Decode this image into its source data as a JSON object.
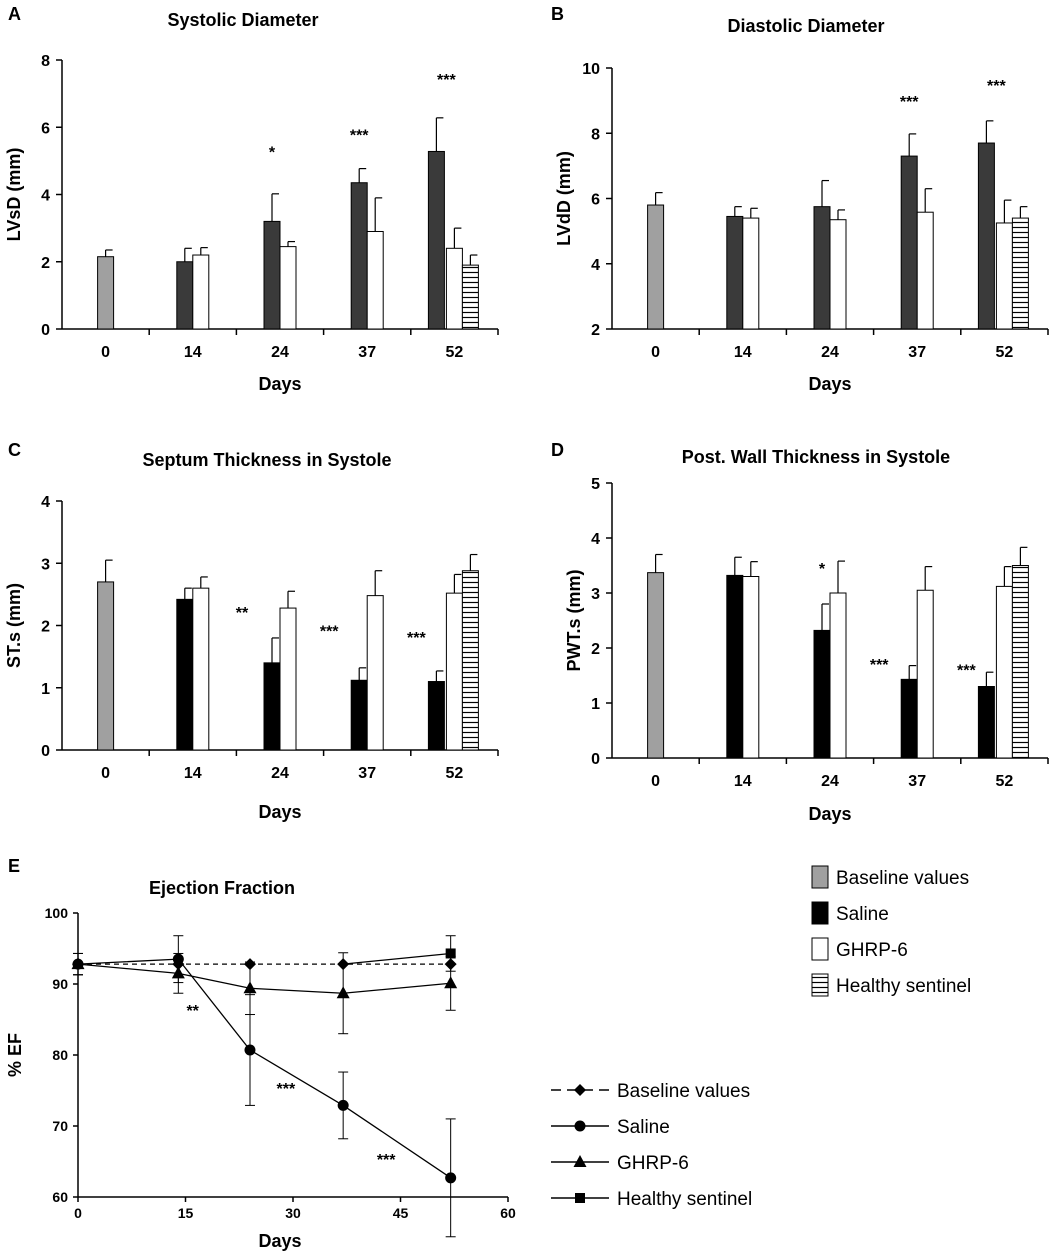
{
  "colors": {
    "baseline": "#a0a0a0",
    "saline_dark": "#3a3a3a",
    "saline_black": "#000000",
    "ghrp": "#ffffff",
    "sentinel": "#ffffff",
    "axis": "#000000"
  },
  "legend_bars": {
    "items": [
      {
        "label": "Baseline values",
        "style": "baseline"
      },
      {
        "label": "Saline",
        "style": "saline"
      },
      {
        "label": "GHRP-6",
        "style": "ghrp"
      },
      {
        "label": "Healthy sentinel",
        "style": "sentinel"
      }
    ]
  },
  "legend_lines": {
    "items": [
      {
        "label": "Baseline values",
        "marker": "diamond",
        "dash": true
      },
      {
        "label": "Saline",
        "marker": "circle",
        "dash": false
      },
      {
        "label": "GHRP-6",
        "marker": "triangle",
        "dash": false
      },
      {
        "label": "Healthy sentinel",
        "marker": "square",
        "dash": false
      }
    ]
  },
  "chart_data": [
    {
      "panel": "A",
      "type": "bar",
      "title": "Systolic Diameter",
      "xlabel": "Days",
      "ylabel": "LVsD (mm)",
      "ylim": [
        0,
        8
      ],
      "yticks": [
        0,
        2,
        4,
        6,
        8
      ],
      "categories": [
        "0",
        "14",
        "24",
        "37",
        "52"
      ],
      "saline_style": "dark",
      "series": [
        {
          "name": "Baseline values",
          "style": "baseline",
          "values": [
            2.15,
            null,
            null,
            null,
            null
          ],
          "errors": [
            0.2,
            null,
            null,
            null,
            null
          ]
        },
        {
          "name": "Saline",
          "style": "saline",
          "values": [
            null,
            2.0,
            3.2,
            4.35,
            5.28
          ],
          "errors": [
            null,
            0.4,
            0.82,
            0.42,
            1.0
          ]
        },
        {
          "name": "GHRP-6",
          "style": "ghrp",
          "values": [
            null,
            2.2,
            2.45,
            2.9,
            2.4
          ],
          "errors": [
            null,
            0.22,
            0.15,
            1.0,
            0.6
          ]
        },
        {
          "name": "Healthy sentinel",
          "style": "sentinel",
          "values": [
            null,
            null,
            null,
            null,
            1.9
          ],
          "errors": [
            null,
            null,
            null,
            null,
            0.3
          ]
        }
      ],
      "annotations": [
        {
          "category": "24",
          "text": "*",
          "y": 5.1
        },
        {
          "category": "37",
          "text": "***",
          "y": 5.6
        },
        {
          "category": "52",
          "text": "***",
          "y": 7.25
        }
      ]
    },
    {
      "panel": "B",
      "type": "bar",
      "title": "Diastolic Diameter",
      "xlabel": "Days",
      "ylabel": "LVdD (mm)",
      "ylim": [
        2,
        10
      ],
      "yticks": [
        2,
        4,
        6,
        8,
        10
      ],
      "categories": [
        "0",
        "14",
        "24",
        "37",
        "52"
      ],
      "saline_style": "dark",
      "series": [
        {
          "name": "Baseline values",
          "style": "baseline",
          "values": [
            5.8,
            null,
            null,
            null,
            null
          ],
          "errors": [
            0.38,
            null,
            null,
            null,
            null
          ]
        },
        {
          "name": "Saline",
          "style": "saline",
          "values": [
            null,
            5.45,
            5.75,
            7.3,
            7.7
          ],
          "errors": [
            null,
            0.3,
            0.8,
            0.68,
            0.68
          ]
        },
        {
          "name": "GHRP-6",
          "style": "ghrp",
          "values": [
            null,
            5.4,
            5.35,
            5.58,
            5.25
          ],
          "errors": [
            null,
            0.3,
            0.3,
            0.72,
            0.7
          ]
        },
        {
          "name": "Healthy sentinel",
          "style": "sentinel",
          "values": [
            null,
            null,
            null,
            null,
            5.4
          ],
          "errors": [
            null,
            null,
            null,
            null,
            0.35
          ]
        }
      ],
      "annotations": [
        {
          "category": "37",
          "text": "***",
          "y": 8.8
        },
        {
          "category": "52",
          "text": "***",
          "y": 9.3
        }
      ]
    },
    {
      "panel": "C",
      "type": "bar",
      "title": "Septum Thickness in Systole",
      "xlabel": "Days",
      "ylabel": "ST.s (mm)",
      "ylim": [
        0,
        4
      ],
      "yticks": [
        0,
        1,
        2,
        3,
        4
      ],
      "categories": [
        "0",
        "14",
        "24",
        "37",
        "52"
      ],
      "saline_style": "black",
      "series": [
        {
          "name": "Baseline values",
          "style": "baseline",
          "values": [
            2.7,
            null,
            null,
            null,
            null
          ],
          "errors": [
            0.35,
            null,
            null,
            null,
            null
          ]
        },
        {
          "name": "Saline",
          "style": "saline",
          "values": [
            null,
            2.42,
            1.4,
            1.12,
            1.1
          ],
          "errors": [
            null,
            0.18,
            0.4,
            0.2,
            0.17
          ]
        },
        {
          "name": "GHRP-6",
          "style": "ghrp",
          "values": [
            null,
            2.6,
            2.28,
            2.48,
            2.52
          ],
          "errors": [
            null,
            0.18,
            0.27,
            0.4,
            0.3
          ]
        },
        {
          "name": "Healthy sentinel",
          "style": "sentinel",
          "values": [
            null,
            null,
            null,
            null,
            2.88
          ],
          "errors": [
            null,
            null,
            null,
            null,
            0.26
          ]
        }
      ],
      "annotations": [
        {
          "category": "24",
          "text": "**",
          "y": 2.12,
          "side": "left"
        },
        {
          "category": "37",
          "text": "***",
          "y": 1.82,
          "side": "left"
        },
        {
          "category": "52",
          "text": "***",
          "y": 1.72,
          "side": "left"
        }
      ]
    },
    {
      "panel": "D",
      "type": "bar",
      "title": "Post. Wall Thickness in Systole",
      "xlabel": "Days",
      "ylabel": "PWT.s (mm)",
      "ylim": [
        0,
        5
      ],
      "yticks": [
        0,
        1,
        2,
        3,
        4,
        5
      ],
      "categories": [
        "0",
        "14",
        "24",
        "37",
        "52"
      ],
      "saline_style": "black",
      "series": [
        {
          "name": "Baseline values",
          "style": "baseline",
          "values": [
            3.37,
            null,
            null,
            null,
            null
          ],
          "errors": [
            0.33,
            null,
            null,
            null,
            null
          ]
        },
        {
          "name": "Saline",
          "style": "saline",
          "values": [
            null,
            3.32,
            2.32,
            1.43,
            1.3
          ],
          "errors": [
            null,
            0.33,
            0.48,
            0.25,
            0.26
          ]
        },
        {
          "name": "GHRP-6",
          "style": "ghrp",
          "values": [
            null,
            3.3,
            3.0,
            3.05,
            3.12
          ],
          "errors": [
            null,
            0.27,
            0.58,
            0.43,
            0.36
          ]
        },
        {
          "name": "Healthy sentinel",
          "style": "sentinel",
          "values": [
            null,
            null,
            null,
            null,
            3.5
          ],
          "errors": [
            null,
            null,
            null,
            null,
            0.33
          ]
        }
      ],
      "annotations": [
        {
          "category": "24",
          "text": "*",
          "y": 3.35
        },
        {
          "category": "37",
          "text": "***",
          "y": 1.6,
          "side": "left"
        },
        {
          "category": "52",
          "text": "***",
          "y": 1.5,
          "side": "left"
        }
      ]
    },
    {
      "panel": "E",
      "type": "line",
      "title": "Ejection Fraction",
      "xlabel": "Days",
      "ylabel": "% EF",
      "xlim": [
        0,
        60
      ],
      "ylim": [
        60,
        100
      ],
      "xticks": [
        0,
        15,
        30,
        45,
        60
      ],
      "yticks": [
        60,
        70,
        80,
        90,
        100
      ],
      "series": [
        {
          "name": "Baseline values",
          "marker": "diamond",
          "dash": true,
          "x": [
            0,
            14,
            24,
            37,
            52
          ],
          "y": [
            92.8,
            92.8,
            92.8,
            92.8,
            92.8
          ],
          "errors": [
            1.5,
            0,
            0,
            0,
            0
          ]
        },
        {
          "name": "Saline",
          "marker": "circle",
          "dash": false,
          "x": [
            0,
            14,
            24,
            37,
            52
          ],
          "y": [
            92.8,
            93.5,
            80.7,
            72.9,
            62.7
          ],
          "errors": [
            1.5,
            3.3,
            7.8,
            4.7,
            8.3
          ]
        },
        {
          "name": "GHRP-6",
          "marker": "triangle",
          "dash": false,
          "x": [
            0,
            14,
            24,
            37,
            52
          ],
          "y": [
            92.8,
            91.5,
            89.4,
            88.7,
            90.1
          ],
          "errors": [
            1.5,
            2.8,
            3.7,
            5.7,
            3.8
          ]
        },
        {
          "name": "Healthy sentinel",
          "marker": "square",
          "dash": false,
          "x": [
            52
          ],
          "y": [
            94.3
          ],
          "errors": [
            2.5
          ]
        }
      ],
      "annotations": [
        {
          "x": 16,
          "y": 85.5,
          "text": "**"
        },
        {
          "x": 29,
          "y": 74.5,
          "text": "***"
        },
        {
          "x": 43,
          "y": 64.5,
          "text": "***"
        }
      ]
    }
  ]
}
